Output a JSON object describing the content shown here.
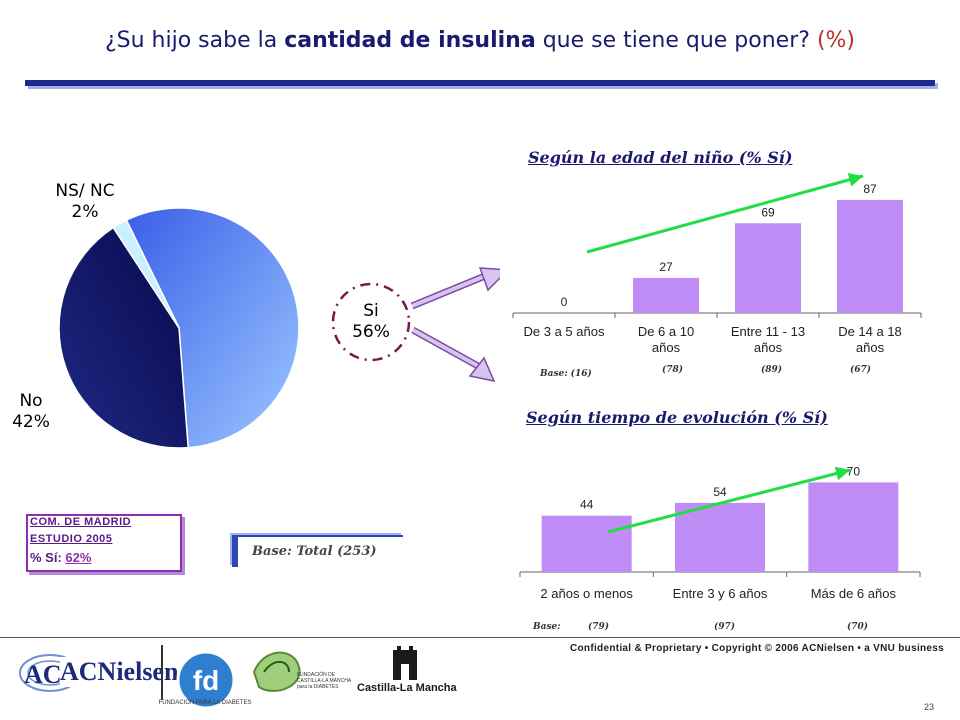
{
  "header": {
    "title_pre": "¿Su hijo sabe la ",
    "title_highlight": "cantidad de insulina",
    "title_post": " que se tiene que poner? ",
    "title_pct": "(%)"
  },
  "pie": {
    "slices": [
      {
        "label": "Si",
        "value_label": "56%",
        "value": 56,
        "color": "#5b8cf0"
      },
      {
        "label": "No",
        "value_label": "42%",
        "value": 42,
        "color": "#10105a"
      },
      {
        "label": "NS/ NC",
        "value_label": "2%",
        "value": 2,
        "color": "#c8f0ff"
      }
    ]
  },
  "madrid": {
    "line1": "COM.    DE    MADRID",
    "line2": "ESTUDIO 2005",
    "line3_prefix": "% Sí: ",
    "line3_value": "62%"
  },
  "base_total": "Base: Total (253)",
  "chart_age": {
    "title": "Según la edad del niño (% Sí)",
    "bases": [
      "Base: (16)",
      "(78)",
      "(89)",
      "(67)"
    ]
  },
  "chart_evo": {
    "title": "Según tiempo de evolución (% Sí)",
    "bases": [
      "Base:",
      "(79)",
      "(97)",
      "(70)"
    ]
  },
  "chart_data": [
    {
      "type": "bar",
      "title": "Según la edad del niño (% Sí)",
      "categories": [
        "De 3 a 5 años",
        "De 6 a 10 años",
        "Entre 11 - 13 años",
        "De 14  a 18 años"
      ],
      "values": [
        0,
        27,
        69,
        87
      ],
      "ylim": [
        0,
        100
      ],
      "bar_color": "#c08cf5",
      "trend_color": "#22dd44"
    },
    {
      "type": "bar",
      "title": "Según tiempo de evolución (% Sí)",
      "categories": [
        "2 años o menos",
        "Entre 3 y 6 años",
        "Más de 6 años"
      ],
      "values": [
        44,
        54,
        70
      ],
      "ylim": [
        0,
        100
      ],
      "bar_color": "#c08cf5",
      "trend_color": "#22dd44"
    }
  ],
  "footer": {
    "text": "Confidential & Proprietary • Copyright © 2006 ACNielsen • a VNU business",
    "page": "23"
  },
  "logos": {
    "acnielsen": "ACNielsen",
    "fundacion": "FUNDACION PARA LA DIABETES",
    "castilla_fund": "FUNDACIÓN DE CASTILLA-LA MANCHA para la DIABETES",
    "castilla": "Castilla-La Mancha"
  }
}
